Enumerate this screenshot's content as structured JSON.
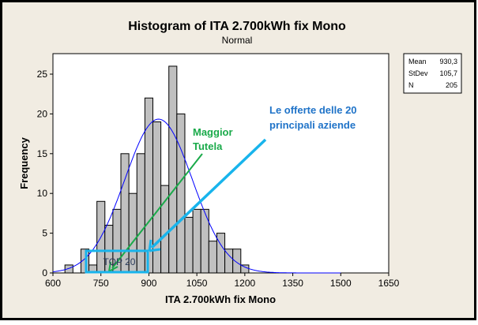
{
  "chart_data": {
    "type": "bar",
    "title": "Histogram of ITA 2.700kWh fix Mono",
    "subtitle": "Normal",
    "xlabel": "ITA 2.700kWh fix Mono",
    "ylabel": "Frequency",
    "xlim": [
      600,
      1650
    ],
    "ylim": [
      0,
      27
    ],
    "bin_width": 25,
    "x_ticks": [
      600,
      750,
      900,
      1050,
      1200,
      1350,
      1500,
      1650
    ],
    "y_ticks": [
      0,
      5,
      10,
      15,
      20,
      25
    ],
    "bin_centers": [
      650,
      675,
      700,
      725,
      750,
      775,
      800,
      825,
      850,
      875,
      900,
      925,
      950,
      975,
      1000,
      1025,
      1050,
      1075,
      1100,
      1125,
      1150,
      1175,
      1200
    ],
    "values": [
      1,
      0,
      3,
      1,
      9,
      6,
      8,
      15,
      10,
      15,
      22,
      19,
      11,
      26,
      20,
      7,
      8,
      8,
      4,
      5,
      3,
      3,
      1
    ],
    "fit": {
      "type": "normal",
      "mean": 930.3,
      "stdev": 105.7,
      "n": 205
    },
    "legend": {
      "placement": "top-right",
      "rows": [
        {
          "label": "Mean",
          "value": "930,3"
        },
        {
          "label": "StDev",
          "value": "105,7"
        },
        {
          "label": "N",
          "value": "205"
        }
      ]
    },
    "annotations": {
      "maggior_line1": "Maggior",
      "maggior_line2": "Tutela",
      "offerte_line1": "Le offerte delle  20",
      "offerte_line2": "principali aziende",
      "top20": "TOP 20"
    }
  },
  "colors": {
    "background": "#f1ece2",
    "bar_fill": "#c0c0c0",
    "curve": "#0000ff",
    "green": "#1aaa4a",
    "blue_text": "#1f73c8",
    "cyan": "#18b4ec"
  }
}
